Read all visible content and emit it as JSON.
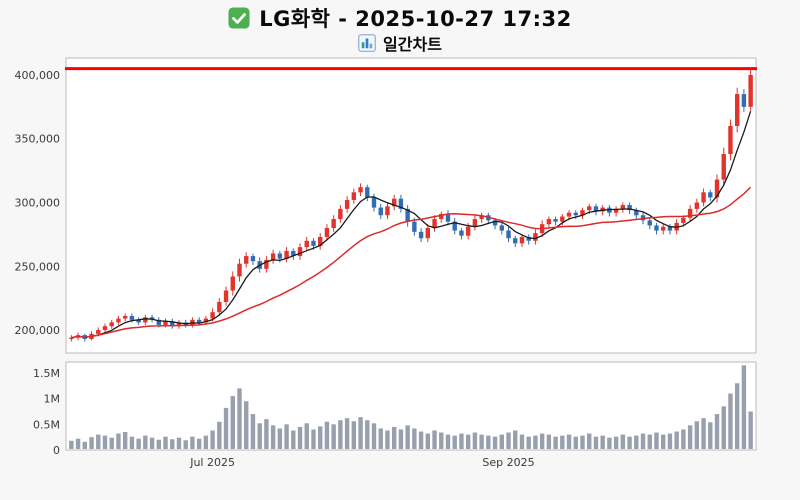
{
  "page": {
    "background": "#f7f7f7"
  },
  "header": {
    "title": "LG화학 - 2025-10-27 17:32",
    "subtitle": "일간차트",
    "check_icon": "white-check-mark",
    "subtitle_icon": "bar-chart"
  },
  "chart_data": {
    "type": "candlestick",
    "title": "LG화학 - 2025-10-27 17:32",
    "subtitle": "일간차트",
    "legend_position": "none",
    "grid": false,
    "resistance_line": {
      "value": 405000,
      "color": "#ff0000"
    },
    "price_axis": {
      "ticks": [
        200000,
        250000,
        300000,
        350000,
        400000
      ],
      "tick_labels": [
        "200,000",
        "250,000",
        "300,000",
        "350,000",
        "400,000"
      ],
      "range": [
        182000,
        413300
      ]
    },
    "volume_axis": {
      "ticks": [
        0,
        500000,
        1000000,
        1500000
      ],
      "tick_labels": [
        "0",
        "0.5M",
        "1M",
        "1.5M"
      ],
      "range": [
        0,
        1714000
      ]
    },
    "x_axis": {
      "tick_indices": [
        21,
        65
      ],
      "tick_labels": [
        "Jul 2025",
        "Sep 2025"
      ]
    },
    "moving_averages": [
      {
        "name": "MA5",
        "window": 5
      },
      {
        "name": "MA20",
        "window": 20
      }
    ],
    "colors": {
      "up": "#e0342c",
      "down": "#2f6eb5",
      "ma_fast": "#1a1a1a",
      "ma_slow": "#dd2a2a",
      "volume": "#98a0ae",
      "panel_border": "#bbbbbb",
      "panel_bg": "#ffffff",
      "tick_text": "#3a3a3a"
    },
    "candles": [
      [
        193000,
        196000,
        191000,
        194000
      ],
      [
        194000,
        198000,
        192000,
        196000
      ],
      [
        196000,
        197000,
        191000,
        193000
      ],
      [
        193000,
        199000,
        192000,
        197000
      ],
      [
        197000,
        202000,
        195000,
        200000
      ],
      [
        200000,
        205000,
        198000,
        203000
      ],
      [
        203000,
        208000,
        201000,
        206000
      ],
      [
        206000,
        211000,
        204000,
        209000
      ],
      [
        209000,
        213000,
        207000,
        211000
      ],
      [
        211000,
        213000,
        206000,
        208000
      ],
      [
        208000,
        210000,
        204000,
        206000
      ],
      [
        206000,
        212000,
        204000,
        210000
      ],
      [
        210000,
        212000,
        206000,
        208000
      ],
      [
        208000,
        210000,
        202000,
        204000
      ],
      [
        204000,
        209000,
        202000,
        207000
      ],
      [
        207000,
        209000,
        201000,
        203000
      ],
      [
        203000,
        208000,
        201000,
        206000
      ],
      [
        206000,
        208000,
        202000,
        204000
      ],
      [
        204000,
        210000,
        202000,
        208000
      ],
      [
        208000,
        210000,
        204000,
        206000
      ],
      [
        206000,
        211000,
        204000,
        209000
      ],
      [
        209000,
        217000,
        207000,
        214000
      ],
      [
        214000,
        225000,
        211000,
        222000
      ],
      [
        222000,
        234000,
        219000,
        231000
      ],
      [
        231000,
        246000,
        227000,
        242000
      ],
      [
        242000,
        256000,
        238000,
        252000
      ],
      [
        252000,
        261000,
        249000,
        258000
      ],
      [
        258000,
        260000,
        251000,
        254000
      ],
      [
        254000,
        257000,
        245000,
        248000
      ],
      [
        248000,
        258000,
        245000,
        255000
      ],
      [
        255000,
        263000,
        252000,
        260000
      ],
      [
        260000,
        262000,
        253000,
        256000
      ],
      [
        256000,
        265000,
        253000,
        262000
      ],
      [
        262000,
        264000,
        255000,
        258000
      ],
      [
        258000,
        268000,
        255000,
        265000
      ],
      [
        265000,
        273000,
        262000,
        270000
      ],
      [
        270000,
        272000,
        263000,
        266000
      ],
      [
        266000,
        276000,
        263000,
        273000
      ],
      [
        273000,
        283000,
        270000,
        280000
      ],
      [
        280000,
        290000,
        277000,
        287000
      ],
      [
        287000,
        298000,
        284000,
        295000
      ],
      [
        295000,
        305000,
        292000,
        302000
      ],
      [
        302000,
        311000,
        299000,
        308000
      ],
      [
        308000,
        315000,
        305000,
        312000
      ],
      [
        312000,
        314000,
        301000,
        304000
      ],
      [
        304000,
        307000,
        293000,
        296000
      ],
      [
        296000,
        299000,
        287000,
        290000
      ],
      [
        290000,
        300000,
        287000,
        297000
      ],
      [
        297000,
        306000,
        294000,
        303000
      ],
      [
        303000,
        306000,
        292000,
        295000
      ],
      [
        295000,
        298000,
        281000,
        285000
      ],
      [
        285000,
        288000,
        274000,
        277000
      ],
      [
        277000,
        280000,
        269000,
        272000
      ],
      [
        272000,
        283000,
        269000,
        280000
      ],
      [
        280000,
        290000,
        277000,
        287000
      ],
      [
        287000,
        293000,
        284000,
        291000
      ],
      [
        291000,
        294000,
        282000,
        285000
      ],
      [
        285000,
        288000,
        275000,
        278000
      ],
      [
        278000,
        280000,
        271000,
        274000
      ],
      [
        274000,
        284000,
        271000,
        281000
      ],
      [
        281000,
        290000,
        278000,
        287000
      ],
      [
        287000,
        292000,
        284000,
        290000
      ],
      [
        290000,
        292000,
        283000,
        286000
      ],
      [
        286000,
        288000,
        279000,
        282000
      ],
      [
        282000,
        284000,
        275000,
        278000
      ],
      [
        278000,
        281000,
        269000,
        272000
      ],
      [
        272000,
        274000,
        265000,
        268000
      ],
      [
        268000,
        275000,
        265000,
        273000
      ],
      [
        273000,
        275000,
        267000,
        270000
      ],
      [
        270000,
        279000,
        267000,
        276000
      ],
      [
        276000,
        286000,
        273000,
        283000
      ],
      [
        283000,
        289000,
        280000,
        287000
      ],
      [
        287000,
        289000,
        282000,
        285000
      ],
      [
        285000,
        291000,
        282000,
        289000
      ],
      [
        289000,
        294000,
        286000,
        292000
      ],
      [
        292000,
        294000,
        287000,
        290000
      ],
      [
        290000,
        296000,
        287000,
        294000
      ],
      [
        294000,
        299000,
        291000,
        297000
      ],
      [
        297000,
        299000,
        290000,
        293000
      ],
      [
        293000,
        298000,
        290000,
        296000
      ],
      [
        296000,
        298000,
        289000,
        292000
      ],
      [
        292000,
        297000,
        289000,
        295000
      ],
      [
        295000,
        300000,
        292000,
        298000
      ],
      [
        298000,
        300000,
        291000,
        294000
      ],
      [
        294000,
        296000,
        287000,
        290000
      ],
      [
        290000,
        292000,
        283000,
        286000
      ],
      [
        286000,
        288000,
        279000,
        282000
      ],
      [
        282000,
        284000,
        275000,
        278000
      ],
      [
        278000,
        283000,
        275000,
        281000
      ],
      [
        281000,
        283000,
        275000,
        278000
      ],
      [
        278000,
        287000,
        275000,
        284000
      ],
      [
        284000,
        290000,
        281000,
        288000
      ],
      [
        288000,
        298000,
        285000,
        295000
      ],
      [
        295000,
        303000,
        292000,
        300000
      ],
      [
        300000,
        311000,
        297000,
        308000
      ],
      [
        308000,
        310000,
        301000,
        304000
      ],
      [
        304000,
        322000,
        300000,
        318000
      ],
      [
        318000,
        343000,
        313000,
        338000
      ],
      [
        338000,
        365000,
        333000,
        360000
      ],
      [
        360000,
        390000,
        355000,
        385000
      ],
      [
        385000,
        389000,
        371000,
        375000
      ],
      [
        375000,
        404000,
        372000,
        400000
      ]
    ],
    "volumes": [
      180000,
      220000,
      160000,
      250000,
      300000,
      280000,
      240000,
      320000,
      350000,
      260000,
      220000,
      280000,
      240000,
      200000,
      260000,
      210000,
      240000,
      190000,
      260000,
      220000,
      280000,
      380000,
      550000,
      820000,
      1050000,
      1200000,
      950000,
      700000,
      520000,
      600000,
      480000,
      420000,
      500000,
      380000,
      450000,
      520000,
      400000,
      460000,
      550000,
      500000,
      580000,
      620000,
      560000,
      640000,
      580000,
      520000,
      420000,
      380000,
      450000,
      400000,
      480000,
      420000,
      360000,
      320000,
      380000,
      340000,
      300000,
      280000,
      320000,
      300000,
      340000,
      300000,
      280000,
      260000,
      300000,
      340000,
      380000,
      300000,
      260000,
      280000,
      320000,
      300000,
      260000,
      280000,
      300000,
      260000,
      280000,
      320000,
      260000,
      280000,
      240000,
      260000,
      300000,
      260000,
      280000,
      320000,
      300000,
      340000,
      300000,
      320000,
      360000,
      400000,
      480000,
      560000,
      620000,
      540000,
      700000,
      850000,
      1100000,
      1300000,
      1650000,
      750000
    ]
  }
}
